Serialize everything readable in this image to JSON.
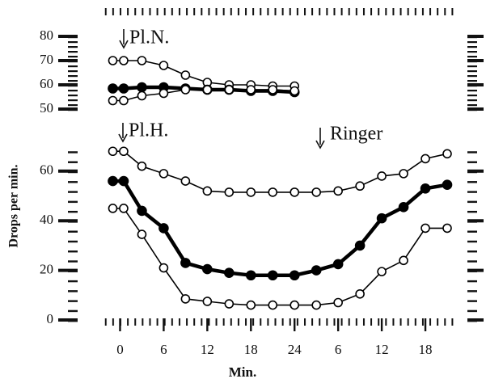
{
  "chart_data": [
    {
      "type": "line",
      "x": [
        -1,
        0.5,
        3,
        6,
        9,
        12,
        15,
        18,
        21,
        24
      ],
      "xlim": [
        -2.5,
        46
      ],
      "ylim": [
        50,
        80
      ],
      "yticks": [
        50,
        60,
        70,
        80
      ],
      "annotations": [
        "Pl.N."
      ],
      "series": [
        {
          "color": "#000000",
          "marker": "open",
          "values": [
            70,
            70,
            70,
            68,
            64,
            61,
            60,
            60,
            59.5,
            59.5
          ]
        },
        {
          "color": "#000000",
          "marker": "filled",
          "values": [
            58.5,
            58.5,
            59,
            59,
            58.5,
            58,
            58,
            57.5,
            57.5,
            57
          ]
        },
        {
          "color": "#000000",
          "marker": "open",
          "values": [
            53.5,
            53.5,
            55.5,
            56.5,
            58,
            58,
            58,
            58,
            58,
            57.5
          ]
        }
      ]
    },
    {
      "type": "line",
      "x": [
        -1,
        0.5,
        3,
        6,
        9,
        12,
        15,
        18,
        21,
        24,
        27,
        30,
        33,
        36,
        39,
        42,
        45
      ],
      "xlim": [
        -2.5,
        46
      ],
      "xticks": [
        0,
        6,
        12,
        18,
        24,
        {
          "value": 30,
          "label": "6"
        },
        {
          "value": 36,
          "label": "12"
        },
        {
          "value": 42,
          "label": "18"
        }
      ],
      "xlabel": "Min.",
      "ylabel": "Drops per min.",
      "ylim": [
        0,
        70
      ],
      "yticks": [
        0,
        20,
        40,
        60
      ],
      "annotations": [
        "Pl.H.",
        "Ringer"
      ],
      "series": [
        {
          "color": "#000000",
          "marker": "open",
          "values": [
            68,
            68,
            62,
            59,
            56,
            52,
            51.5,
            51.5,
            51.5,
            51.5,
            51.5,
            52,
            54,
            58,
            59,
            65,
            67
          ]
        },
        {
          "color": "#000000",
          "marker": "filled",
          "values": [
            56,
            56,
            44,
            37,
            23,
            20.5,
            19,
            18,
            18,
            18,
            20,
            22.5,
            30,
            41,
            45.5,
            53,
            54.5
          ]
        },
        {
          "color": "#000000",
          "marker": "open",
          "values": [
            45,
            45,
            34.5,
            21,
            8.5,
            7.5,
            6.5,
            6,
            6,
            6,
            6,
            7,
            10.5,
            19.5,
            24,
            37,
            37
          ]
        }
      ]
    }
  ]
}
